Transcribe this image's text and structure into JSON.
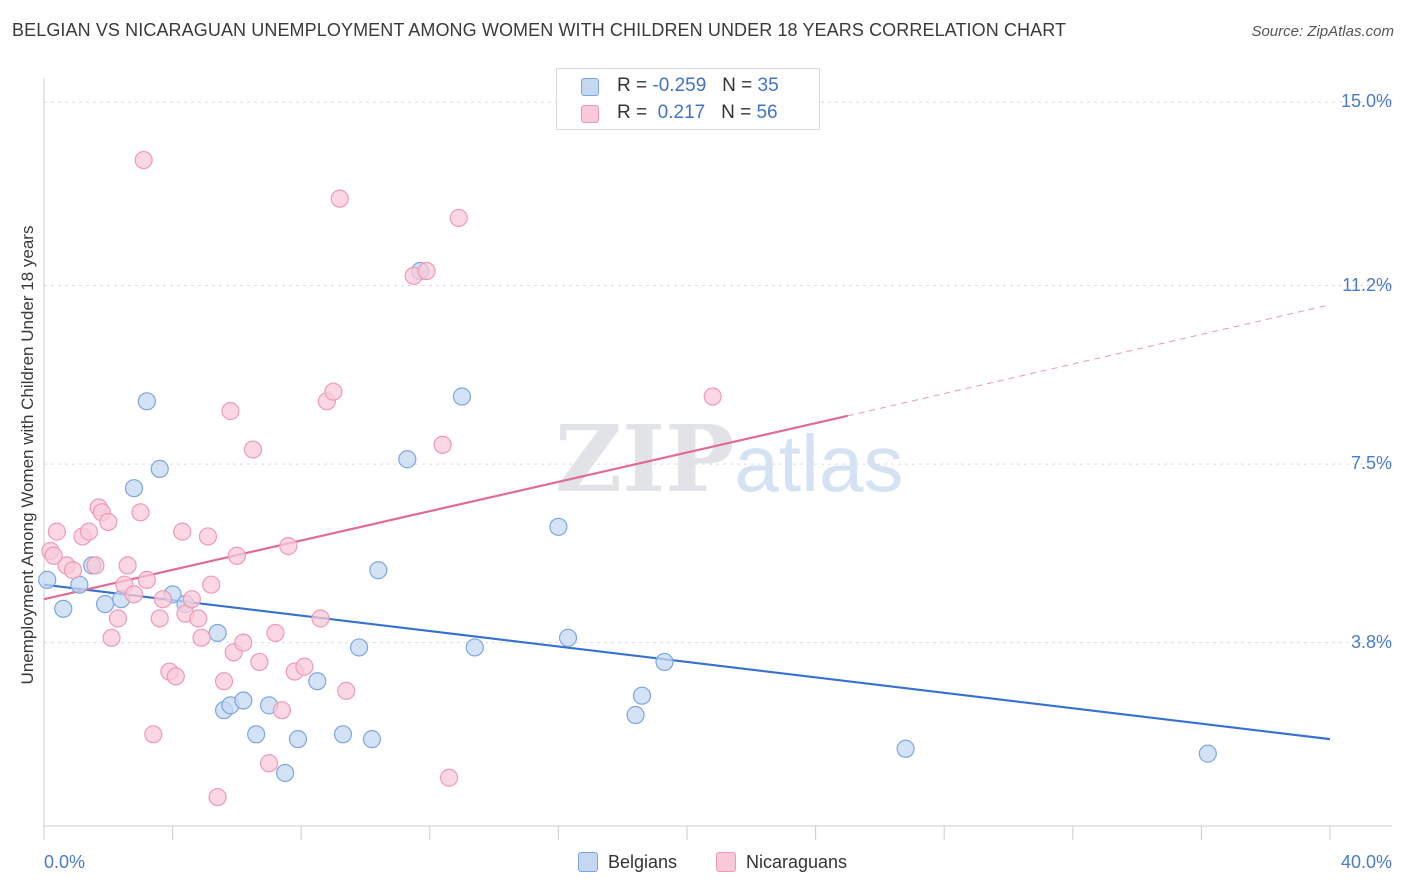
{
  "title": "BELGIAN VS NICARAGUAN UNEMPLOYMENT AMONG WOMEN WITH CHILDREN UNDER 18 YEARS CORRELATION CHART",
  "source": "Source: ZipAtlas.com",
  "watermark": {
    "zip": "ZIP",
    "atlas": "atlas"
  },
  "legend": {
    "rows": [
      {
        "r_label": "R =",
        "r_value": "-0.259",
        "n_label": "N =",
        "n_value": "35",
        "color": "#a9c6ee"
      },
      {
        "r_label": "R =",
        "r_value": " 0.217",
        "n_label": "N =",
        "n_value": "56",
        "color": "#f5b3c8"
      }
    ]
  },
  "bottom_legend": [
    "Belgians",
    "Nicaraguans"
  ],
  "colors": {
    "belgians_fill": "#c5d8f3",
    "belgians_stroke": "#7ea6de",
    "belgians_line": "#3571cf",
    "nicaraguans_fill": "#f8c9d8",
    "nicaraguans_stroke": "#ee9ab6",
    "nicaraguans_line": "#e06b93",
    "tick_text": "#4a7cc9"
  },
  "chart_data": {
    "type": "scatter",
    "xlabel": "",
    "ylabel": "Unemployment Among Women with Children Under 18 years",
    "xlim": [
      0,
      40
    ],
    "ylim": [
      0,
      15.5
    ],
    "x_tick_labels": [
      "0.0%",
      "40.0%"
    ],
    "y_ticks": [
      3.8,
      7.5,
      11.2,
      15.0
    ],
    "y_tick_labels": [
      "3.8%",
      "7.5%",
      "11.2%",
      "15.0%"
    ],
    "grid": "horizontal dashed",
    "series": [
      {
        "name": "Belgians",
        "points": [
          [
            0.1,
            5.1
          ],
          [
            0.6,
            4.5
          ],
          [
            1.1,
            5.0
          ],
          [
            1.5,
            5.4
          ],
          [
            1.9,
            4.6
          ],
          [
            2.4,
            4.7
          ],
          [
            2.8,
            7.0
          ],
          [
            3.2,
            8.8
          ],
          [
            3.6,
            7.4
          ],
          [
            4.0,
            4.8
          ],
          [
            4.4,
            4.6
          ],
          [
            5.4,
            4.0
          ],
          [
            5.6,
            2.4
          ],
          [
            5.8,
            2.5
          ],
          [
            6.2,
            2.6
          ],
          [
            6.6,
            1.9
          ],
          [
            7.0,
            2.5
          ],
          [
            7.5,
            1.1
          ],
          [
            7.9,
            1.8
          ],
          [
            8.5,
            3.0
          ],
          [
            9.3,
            1.9
          ],
          [
            9.8,
            3.7
          ],
          [
            10.2,
            1.8
          ],
          [
            10.4,
            5.3
          ],
          [
            11.3,
            7.6
          ],
          [
            11.7,
            11.5
          ],
          [
            13.0,
            8.9
          ],
          [
            13.4,
            3.7
          ],
          [
            16.0,
            6.2
          ],
          [
            16.3,
            3.9
          ],
          [
            18.6,
            2.7
          ],
          [
            18.4,
            2.3
          ],
          [
            19.3,
            3.4
          ],
          [
            26.8,
            1.6
          ],
          [
            36.2,
            1.5
          ]
        ],
        "trend": {
          "x": [
            0,
            40
          ],
          "y": [
            5.0,
            1.8
          ]
        }
      },
      {
        "name": "Nicaraguans",
        "points": [
          [
            0.2,
            5.7
          ],
          [
            0.4,
            6.1
          ],
          [
            0.7,
            5.4
          ],
          [
            0.9,
            5.3
          ],
          [
            1.2,
            6.0
          ],
          [
            1.4,
            6.1
          ],
          [
            1.6,
            5.4
          ],
          [
            1.7,
            6.6
          ],
          [
            1.8,
            6.5
          ],
          [
            2.0,
            6.3
          ],
          [
            2.1,
            3.9
          ],
          [
            2.3,
            4.3
          ],
          [
            2.5,
            5.0
          ],
          [
            2.6,
            5.4
          ],
          [
            2.8,
            4.8
          ],
          [
            3.0,
            6.5
          ],
          [
            3.1,
            13.8
          ],
          [
            3.2,
            5.1
          ],
          [
            3.4,
            1.9
          ],
          [
            3.6,
            4.3
          ],
          [
            3.7,
            4.7
          ],
          [
            3.9,
            3.2
          ],
          [
            4.1,
            3.1
          ],
          [
            4.3,
            6.1
          ],
          [
            4.4,
            4.4
          ],
          [
            4.6,
            4.7
          ],
          [
            4.8,
            4.3
          ],
          [
            4.9,
            3.9
          ],
          [
            5.1,
            6.0
          ],
          [
            5.2,
            5.0
          ],
          [
            5.4,
            0.6
          ],
          [
            5.6,
            3.0
          ],
          [
            5.8,
            8.6
          ],
          [
            5.9,
            3.6
          ],
          [
            6.0,
            5.6
          ],
          [
            6.2,
            3.8
          ],
          [
            6.5,
            7.8
          ],
          [
            6.7,
            3.4
          ],
          [
            7.0,
            1.3
          ],
          [
            7.2,
            4.0
          ],
          [
            7.4,
            2.4
          ],
          [
            7.6,
            5.8
          ],
          [
            7.8,
            3.2
          ],
          [
            8.1,
            3.3
          ],
          [
            8.6,
            4.3
          ],
          [
            8.8,
            8.8
          ],
          [
            9.0,
            9.0
          ],
          [
            9.2,
            13.0
          ],
          [
            9.4,
            2.8
          ],
          [
            11.5,
            11.4
          ],
          [
            11.9,
            11.5
          ],
          [
            12.4,
            7.9
          ],
          [
            12.6,
            1.0
          ],
          [
            12.9,
            12.6
          ],
          [
            20.8,
            8.9
          ],
          [
            0.3,
            5.6
          ]
        ],
        "trend": {
          "x": [
            0,
            25
          ],
          "y": [
            4.7,
            8.5
          ]
        },
        "trend_extrapolated": {
          "x": [
            25,
            40
          ],
          "y": [
            8.5,
            10.8
          ]
        }
      }
    ]
  }
}
